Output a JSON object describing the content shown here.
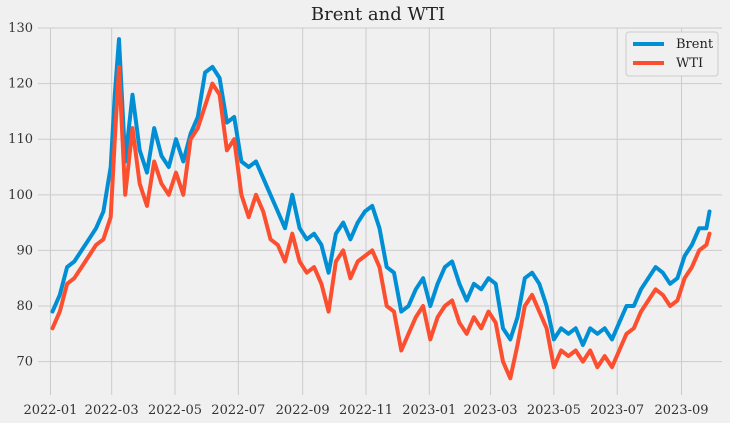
{
  "chart_data": {
    "type": "line",
    "title": "Brent and WTI",
    "xlabel": "",
    "ylabel": "",
    "x_tick_labels": [
      "2022-01",
      "2022-03",
      "2022-05",
      "2022-07",
      "2022-09",
      "2022-11",
      "2023-01",
      "2023-03",
      "2023-05",
      "2023-07",
      "2023-09"
    ],
    "y_tick_labels": [
      "70",
      "80",
      "90",
      "100",
      "110",
      "120",
      "130"
    ],
    "x_range": [
      "2021-12-20",
      "2023-10-10"
    ],
    "ylim": [
      64,
      130
    ],
    "grid": true,
    "legend_position": "top-right",
    "series": [
      {
        "name": "Brent",
        "color": "#008fd5",
        "points": [
          [
            "2022-01-03",
            79
          ],
          [
            "2022-01-10",
            82
          ],
          [
            "2022-01-17",
            87
          ],
          [
            "2022-01-24",
            88
          ],
          [
            "2022-01-31",
            90
          ],
          [
            "2022-02-07",
            92
          ],
          [
            "2022-02-14",
            94
          ],
          [
            "2022-02-21",
            97
          ],
          [
            "2022-02-28",
            105
          ],
          [
            "2022-03-04",
            118
          ],
          [
            "2022-03-08",
            128
          ],
          [
            "2022-03-14",
            106
          ],
          [
            "2022-03-21",
            118
          ],
          [
            "2022-03-28",
            108
          ],
          [
            "2022-04-04",
            104
          ],
          [
            "2022-04-11",
            112
          ],
          [
            "2022-04-18",
            107
          ],
          [
            "2022-04-25",
            105
          ],
          [
            "2022-05-02",
            110
          ],
          [
            "2022-05-09",
            106
          ],
          [
            "2022-05-16",
            111
          ],
          [
            "2022-05-23",
            114
          ],
          [
            "2022-05-30",
            122
          ],
          [
            "2022-06-06",
            123
          ],
          [
            "2022-06-13",
            121
          ],
          [
            "2022-06-20",
            113
          ],
          [
            "2022-06-27",
            114
          ],
          [
            "2022-07-04",
            106
          ],
          [
            "2022-07-11",
            105
          ],
          [
            "2022-07-18",
            106
          ],
          [
            "2022-07-25",
            103
          ],
          [
            "2022-08-01",
            100
          ],
          [
            "2022-08-08",
            97
          ],
          [
            "2022-08-15",
            94
          ],
          [
            "2022-08-22",
            100
          ],
          [
            "2022-08-29",
            94
          ],
          [
            "2022-09-05",
            92
          ],
          [
            "2022-09-12",
            93
          ],
          [
            "2022-09-19",
            91
          ],
          [
            "2022-09-26",
            86
          ],
          [
            "2022-10-03",
            93
          ],
          [
            "2022-10-10",
            95
          ],
          [
            "2022-10-17",
            92
          ],
          [
            "2022-10-24",
            95
          ],
          [
            "2022-10-31",
            97
          ],
          [
            "2022-11-07",
            98
          ],
          [
            "2022-11-14",
            94
          ],
          [
            "2022-11-21",
            87
          ],
          [
            "2022-11-28",
            86
          ],
          [
            "2022-12-05",
            79
          ],
          [
            "2022-12-12",
            80
          ],
          [
            "2022-12-19",
            83
          ],
          [
            "2022-12-26",
            85
          ],
          [
            "2023-01-02",
            80
          ],
          [
            "2023-01-09",
            84
          ],
          [
            "2023-01-16",
            87
          ],
          [
            "2023-01-23",
            88
          ],
          [
            "2023-01-30",
            84
          ],
          [
            "2023-02-06",
            81
          ],
          [
            "2023-02-13",
            84
          ],
          [
            "2023-02-20",
            83
          ],
          [
            "2023-02-27",
            85
          ],
          [
            "2023-03-06",
            84
          ],
          [
            "2023-03-13",
            76
          ],
          [
            "2023-03-20",
            74
          ],
          [
            "2023-03-27",
            78
          ],
          [
            "2023-04-03",
            85
          ],
          [
            "2023-04-10",
            86
          ],
          [
            "2023-04-17",
            84
          ],
          [
            "2023-04-24",
            80
          ],
          [
            "2023-05-01",
            74
          ],
          [
            "2023-05-08",
            76
          ],
          [
            "2023-05-15",
            75
          ],
          [
            "2023-05-22",
            76
          ],
          [
            "2023-05-29",
            73
          ],
          [
            "2023-06-05",
            76
          ],
          [
            "2023-06-12",
            75
          ],
          [
            "2023-06-19",
            76
          ],
          [
            "2023-06-26",
            74
          ],
          [
            "2023-07-03",
            77
          ],
          [
            "2023-07-10",
            80
          ],
          [
            "2023-07-17",
            80
          ],
          [
            "2023-07-24",
            83
          ],
          [
            "2023-07-31",
            85
          ],
          [
            "2023-08-07",
            87
          ],
          [
            "2023-08-14",
            86
          ],
          [
            "2023-08-21",
            84
          ],
          [
            "2023-08-28",
            85
          ],
          [
            "2023-09-04",
            89
          ],
          [
            "2023-09-11",
            91
          ],
          [
            "2023-09-18",
            94
          ],
          [
            "2023-09-25",
            94
          ],
          [
            "2023-09-28",
            97
          ]
        ]
      },
      {
        "name": "WTI",
        "color": "#fc4f30",
        "points": [
          [
            "2022-01-03",
            76
          ],
          [
            "2022-01-10",
            79
          ],
          [
            "2022-01-17",
            84
          ],
          [
            "2022-01-24",
            85
          ],
          [
            "2022-01-31",
            87
          ],
          [
            "2022-02-07",
            89
          ],
          [
            "2022-02-14",
            91
          ],
          [
            "2022-02-21",
            92
          ],
          [
            "2022-02-28",
            96
          ],
          [
            "2022-03-04",
            110
          ],
          [
            "2022-03-08",
            123
          ],
          [
            "2022-03-14",
            100
          ],
          [
            "2022-03-21",
            112
          ],
          [
            "2022-03-28",
            102
          ],
          [
            "2022-04-04",
            98
          ],
          [
            "2022-04-11",
            106
          ],
          [
            "2022-04-18",
            102
          ],
          [
            "2022-04-25",
            100
          ],
          [
            "2022-05-02",
            104
          ],
          [
            "2022-05-09",
            100
          ],
          [
            "2022-05-16",
            110
          ],
          [
            "2022-05-23",
            112
          ],
          [
            "2022-05-30",
            116
          ],
          [
            "2022-06-06",
            120
          ],
          [
            "2022-06-13",
            118
          ],
          [
            "2022-06-20",
            108
          ],
          [
            "2022-06-27",
            110
          ],
          [
            "2022-07-04",
            100
          ],
          [
            "2022-07-11",
            96
          ],
          [
            "2022-07-18",
            100
          ],
          [
            "2022-07-25",
            97
          ],
          [
            "2022-08-01",
            92
          ],
          [
            "2022-08-08",
            91
          ],
          [
            "2022-08-15",
            88
          ],
          [
            "2022-08-22",
            93
          ],
          [
            "2022-08-29",
            88
          ],
          [
            "2022-09-05",
            86
          ],
          [
            "2022-09-12",
            87
          ],
          [
            "2022-09-19",
            84
          ],
          [
            "2022-09-26",
            79
          ],
          [
            "2022-10-03",
            88
          ],
          [
            "2022-10-10",
            90
          ],
          [
            "2022-10-17",
            85
          ],
          [
            "2022-10-24",
            88
          ],
          [
            "2022-10-31",
            89
          ],
          [
            "2022-11-07",
            90
          ],
          [
            "2022-11-14",
            87
          ],
          [
            "2022-11-21",
            80
          ],
          [
            "2022-11-28",
            79
          ],
          [
            "2022-12-05",
            72
          ],
          [
            "2022-12-12",
            75
          ],
          [
            "2022-12-19",
            78
          ],
          [
            "2022-12-26",
            80
          ],
          [
            "2023-01-02",
            74
          ],
          [
            "2023-01-09",
            78
          ],
          [
            "2023-01-16",
            80
          ],
          [
            "2023-01-23",
            81
          ],
          [
            "2023-01-30",
            77
          ],
          [
            "2023-02-06",
            75
          ],
          [
            "2023-02-13",
            78
          ],
          [
            "2023-02-20",
            76
          ],
          [
            "2023-02-27",
            79
          ],
          [
            "2023-03-06",
            77
          ],
          [
            "2023-03-13",
            70
          ],
          [
            "2023-03-20",
            67
          ],
          [
            "2023-03-27",
            73
          ],
          [
            "2023-04-03",
            80
          ],
          [
            "2023-04-10",
            82
          ],
          [
            "2023-04-17",
            79
          ],
          [
            "2023-04-24",
            76
          ],
          [
            "2023-05-01",
            69
          ],
          [
            "2023-05-08",
            72
          ],
          [
            "2023-05-15",
            71
          ],
          [
            "2023-05-22",
            72
          ],
          [
            "2023-05-29",
            70
          ],
          [
            "2023-06-05",
            72
          ],
          [
            "2023-06-12",
            69
          ],
          [
            "2023-06-19",
            71
          ],
          [
            "2023-06-26",
            69
          ],
          [
            "2023-07-03",
            72
          ],
          [
            "2023-07-10",
            75
          ],
          [
            "2023-07-17",
            76
          ],
          [
            "2023-07-24",
            79
          ],
          [
            "2023-07-31",
            81
          ],
          [
            "2023-08-07",
            83
          ],
          [
            "2023-08-14",
            82
          ],
          [
            "2023-08-21",
            80
          ],
          [
            "2023-08-28",
            81
          ],
          [
            "2023-09-04",
            85
          ],
          [
            "2023-09-11",
            87
          ],
          [
            "2023-09-18",
            90
          ],
          [
            "2023-09-25",
            91
          ],
          [
            "2023-09-28",
            93
          ]
        ]
      }
    ]
  }
}
